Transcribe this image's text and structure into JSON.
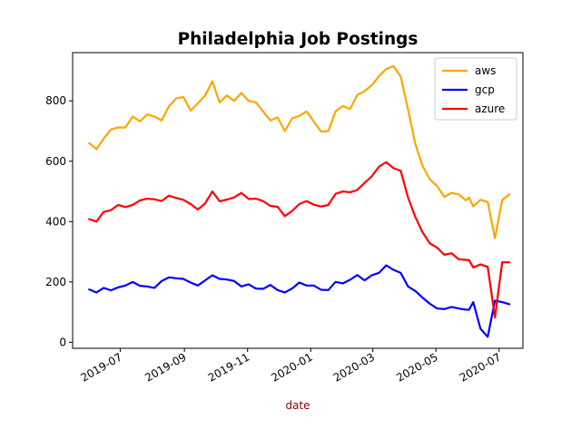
{
  "chart_data": {
    "type": "line",
    "title": "Philadelphia Job Postings",
    "xlabel": "date",
    "xlabel_color": "#8b0000",
    "ylabel": "",
    "xlim": [
      "2019-05-16",
      "2020-07-24"
    ],
    "ylim": [
      -20,
      960
    ],
    "x_ticks": [
      {
        "date": "2019-07-01",
        "label": "2019-07"
      },
      {
        "date": "2019-09-01",
        "label": "2019-09"
      },
      {
        "date": "2019-11-01",
        "label": "2019-11"
      },
      {
        "date": "2020-01-01",
        "label": "2020-01"
      },
      {
        "date": "2020-03-01",
        "label": "2020-03"
      },
      {
        "date": "2020-05-01",
        "label": "2020-05"
      },
      {
        "date": "2020-07-01",
        "label": "2020-07"
      }
    ],
    "y_ticks": [
      0,
      200,
      400,
      600,
      800
    ],
    "grid": false,
    "legend_position": "top-right",
    "x": [
      "2019-06-01",
      "2019-06-08",
      "2019-06-15",
      "2019-06-22",
      "2019-06-29",
      "2019-07-06",
      "2019-07-13",
      "2019-07-20",
      "2019-07-27",
      "2019-08-03",
      "2019-08-10",
      "2019-08-17",
      "2019-08-24",
      "2019-08-31",
      "2019-09-07",
      "2019-09-14",
      "2019-09-21",
      "2019-09-28",
      "2019-10-05",
      "2019-10-12",
      "2019-10-19",
      "2019-10-26",
      "2019-11-02",
      "2019-11-09",
      "2019-11-16",
      "2019-11-23",
      "2019-11-30",
      "2019-12-07",
      "2019-12-14",
      "2019-12-21",
      "2019-12-28",
      "2020-01-04",
      "2020-01-11",
      "2020-01-18",
      "2020-01-25",
      "2020-02-01",
      "2020-02-08",
      "2020-02-15",
      "2020-02-22",
      "2020-02-29",
      "2020-03-07",
      "2020-03-14",
      "2020-03-21",
      "2020-03-28",
      "2020-04-04",
      "2020-04-11",
      "2020-04-18",
      "2020-04-25",
      "2020-05-02",
      "2020-05-09",
      "2020-05-16",
      "2020-05-23",
      "2020-05-30",
      "2020-06-02",
      "2020-06-06",
      "2020-06-13",
      "2020-06-20",
      "2020-06-27",
      "2020-07-04",
      "2020-07-11"
    ],
    "series": [
      {
        "name": "aws",
        "color": "#ffa500",
        "values": [
          660,
          640,
          675,
          705,
          712,
          712,
          748,
          732,
          755,
          748,
          735,
          782,
          808,
          813,
          768,
          792,
          818,
          865,
          795,
          818,
          800,
          826,
          800,
          795,
          765,
          735,
          745,
          700,
          742,
          750,
          765,
          732,
          698,
          700,
          765,
          783,
          773,
          820,
          832,
          852,
          882,
          906,
          915,
          880,
          772,
          658,
          585,
          540,
          518,
          482,
          495,
          490,
          470,
          480,
          450,
          472,
          465,
          345,
          472,
          490
        ]
      },
      {
        "name": "gcp",
        "color": "#0000ff",
        "values": [
          175,
          165,
          180,
          172,
          182,
          188,
          200,
          187,
          185,
          180,
          203,
          215,
          212,
          210,
          198,
          188,
          205,
          222,
          210,
          208,
          203,
          185,
          192,
          178,
          177,
          190,
          173,
          165,
          178,
          198,
          188,
          188,
          174,
          173,
          200,
          195,
          207,
          223,
          205,
          222,
          230,
          255,
          240,
          230,
          185,
          170,
          148,
          128,
          112,
          110,
          117,
          112,
          108,
          108,
          133,
          45,
          18,
          138,
          133,
          126
        ]
      },
      {
        "name": "azure",
        "color": "#ff0000",
        "values": [
          408,
          400,
          432,
          438,
          455,
          448,
          455,
          470,
          476,
          474,
          468,
          486,
          478,
          472,
          458,
          440,
          460,
          500,
          467,
          473,
          480,
          495,
          475,
          476,
          468,
          452,
          449,
          418,
          435,
          458,
          468,
          456,
          450,
          455,
          492,
          500,
          497,
          505,
          528,
          550,
          582,
          597,
          577,
          568,
          480,
          416,
          365,
          328,
          314,
          290,
          295,
          275,
          273,
          272,
          248,
          258,
          250,
          82,
          265,
          265
        ]
      }
    ]
  }
}
